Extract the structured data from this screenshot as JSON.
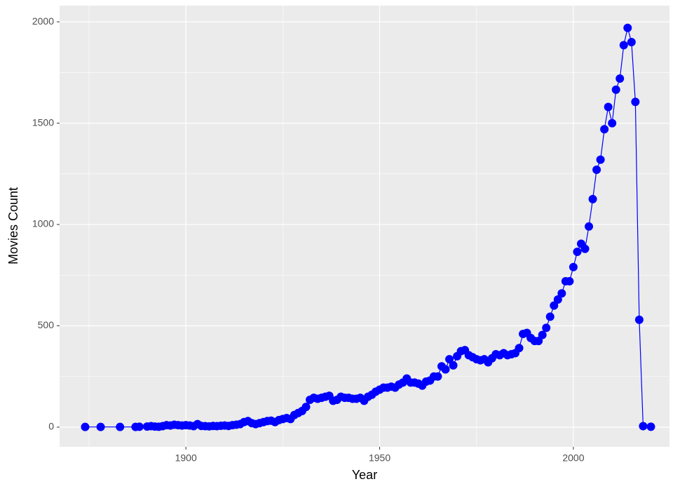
{
  "chart_data": {
    "type": "line",
    "xlabel": "Year",
    "ylabel": "Movies Count",
    "color": "#0000ff",
    "markers": true,
    "grid": true,
    "x": [
      1874,
      1878,
      1883,
      1887,
      1888,
      1890,
      1891,
      1892,
      1893,
      1894,
      1895,
      1896,
      1897,
      1898,
      1899,
      1900,
      1901,
      1902,
      1903,
      1904,
      1905,
      1906,
      1907,
      1908,
      1909,
      1910,
      1911,
      1912,
      1913,
      1914,
      1915,
      1916,
      1917,
      1918,
      1919,
      1920,
      1921,
      1922,
      1923,
      1924,
      1925,
      1926,
      1927,
      1928,
      1929,
      1930,
      1931,
      1932,
      1933,
      1934,
      1935,
      1936,
      1937,
      1938,
      1939,
      1940,
      1941,
      1942,
      1943,
      1944,
      1945,
      1946,
      1947,
      1948,
      1949,
      1950,
      1951,
      1952,
      1953,
      1954,
      1955,
      1956,
      1957,
      1958,
      1959,
      1960,
      1961,
      1962,
      1963,
      1964,
      1965,
      1966,
      1967,
      1968,
      1969,
      1970,
      1971,
      1972,
      1973,
      1974,
      1975,
      1976,
      1977,
      1978,
      1979,
      1980,
      1981,
      1982,
      1983,
      1984,
      1985,
      1986,
      1987,
      1988,
      1989,
      1990,
      1991,
      1992,
      1993,
      1994,
      1995,
      1996,
      1997,
      1998,
      1999,
      2000,
      2001,
      2002,
      2003,
      2004,
      2005,
      2006,
      2007,
      2008,
      2009,
      2010,
      2011,
      2012,
      2013,
      2014,
      2015,
      2016,
      2017,
      2018,
      2020
    ],
    "values": [
      1,
      1,
      1,
      1,
      2,
      3,
      5,
      3,
      2,
      5,
      10,
      8,
      12,
      10,
      8,
      10,
      8,
      5,
      15,
      6,
      5,
      4,
      6,
      5,
      7,
      8,
      6,
      10,
      12,
      15,
      25,
      30,
      20,
      15,
      20,
      25,
      30,
      32,
      25,
      35,
      40,
      45,
      40,
      60,
      70,
      80,
      100,
      135,
      145,
      140,
      145,
      150,
      155,
      130,
      135,
      150,
      145,
      145,
      140,
      140,
      145,
      130,
      150,
      160,
      175,
      185,
      195,
      195,
      200,
      195,
      210,
      220,
      240,
      220,
      220,
      215,
      205,
      225,
      230,
      250,
      250,
      300,
      285,
      335,
      305,
      350,
      375,
      380,
      355,
      345,
      335,
      330,
      335,
      320,
      340,
      360,
      355,
      365,
      355,
      360,
      365,
      390,
      460,
      465,
      440,
      425,
      425,
      455,
      490,
      545,
      600,
      630,
      660,
      720,
      720,
      790,
      865,
      905,
      880,
      990,
      1125,
      1270,
      1320,
      1470,
      1580,
      1500,
      1665,
      1720,
      1885,
      1970,
      1900,
      1605,
      530,
      5,
      2
    ],
    "xlim": [
      1867.4,
      2024.8
    ],
    "ylim": [
      -97,
      2080
    ],
    "xticks": [
      1900,
      1950,
      2000
    ],
    "yticks": [
      0,
      500,
      1000,
      1500,
      2000
    ],
    "minor_xticks": [
      1875,
      1925,
      1975,
      2025
    ],
    "minor_yticks": [
      250,
      750,
      1250,
      1750
    ]
  }
}
